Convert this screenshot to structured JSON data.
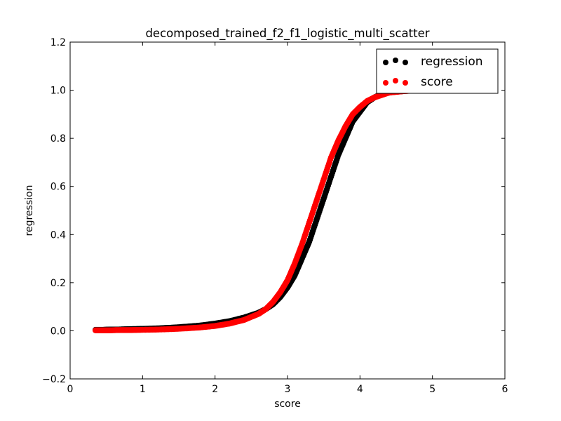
{
  "chart_data": {
    "type": "scatter",
    "title": "decomposed_trained_f2_f1_logistic_multi_scatter",
    "xlabel": "score",
    "ylabel": "regression",
    "xlim": [
      0,
      6
    ],
    "ylim": [
      -0.2,
      1.2
    ],
    "x_ticks": [
      0,
      1,
      2,
      3,
      4,
      5,
      6
    ],
    "x_tick_labels": [
      "0",
      "1",
      "2",
      "3",
      "4",
      "5",
      "6"
    ],
    "y_ticks": [
      -0.2,
      0.0,
      0.2,
      0.4,
      0.6,
      0.8,
      1.0,
      1.2
    ],
    "y_tick_labels": [
      "−0.2",
      "0.0",
      "0.2",
      "0.4",
      "0.6",
      "0.8",
      "1.0",
      "1.2"
    ],
    "grid": false,
    "legend_position": "top-right",
    "series": [
      {
        "name": "regression",
        "color": "#000000",
        "x": [
          0.35,
          0.45,
          0.55,
          0.65,
          0.75,
          0.85,
          1.0,
          1.2,
          1.4,
          1.6,
          1.8,
          2.0,
          2.2,
          2.4,
          2.6,
          2.7,
          2.8,
          2.9,
          3.0,
          3.1,
          3.2,
          3.3,
          3.4,
          3.5,
          3.6,
          3.7,
          3.8,
          3.9,
          4.0,
          4.1,
          4.2,
          4.3,
          4.4,
          4.5,
          4.6,
          4.7
        ],
        "y": [
          0.004,
          0.004,
          0.005,
          0.005,
          0.006,
          0.007,
          0.008,
          0.01,
          0.013,
          0.017,
          0.022,
          0.03,
          0.04,
          0.055,
          0.075,
          0.09,
          0.11,
          0.14,
          0.18,
          0.23,
          0.3,
          0.37,
          0.46,
          0.55,
          0.64,
          0.73,
          0.8,
          0.87,
          0.91,
          0.95,
          0.97,
          0.985,
          0.99,
          0.995,
          0.998,
          1.0
        ]
      },
      {
        "name": "score",
        "color": "#ff0000",
        "x": [
          0.35,
          0.45,
          0.55,
          0.65,
          0.75,
          0.85,
          1.0,
          1.2,
          1.4,
          1.6,
          1.8,
          2.0,
          2.2,
          2.4,
          2.6,
          2.7,
          2.8,
          2.9,
          3.0,
          3.1,
          3.2,
          3.3,
          3.4,
          3.5,
          3.6,
          3.7,
          3.8,
          3.9,
          4.0,
          4.1,
          4.2,
          4.3,
          4.4,
          4.5,
          4.6,
          4.7,
          4.8
        ],
        "y": [
          0.002,
          0.002,
          0.002,
          0.003,
          0.003,
          0.003,
          0.004,
          0.005,
          0.007,
          0.01,
          0.014,
          0.02,
          0.03,
          0.045,
          0.07,
          0.09,
          0.12,
          0.16,
          0.21,
          0.28,
          0.36,
          0.45,
          0.54,
          0.63,
          0.72,
          0.79,
          0.85,
          0.9,
          0.93,
          0.955,
          0.97,
          0.98,
          0.99,
          0.993,
          0.996,
          0.998,
          0.999
        ]
      }
    ]
  }
}
